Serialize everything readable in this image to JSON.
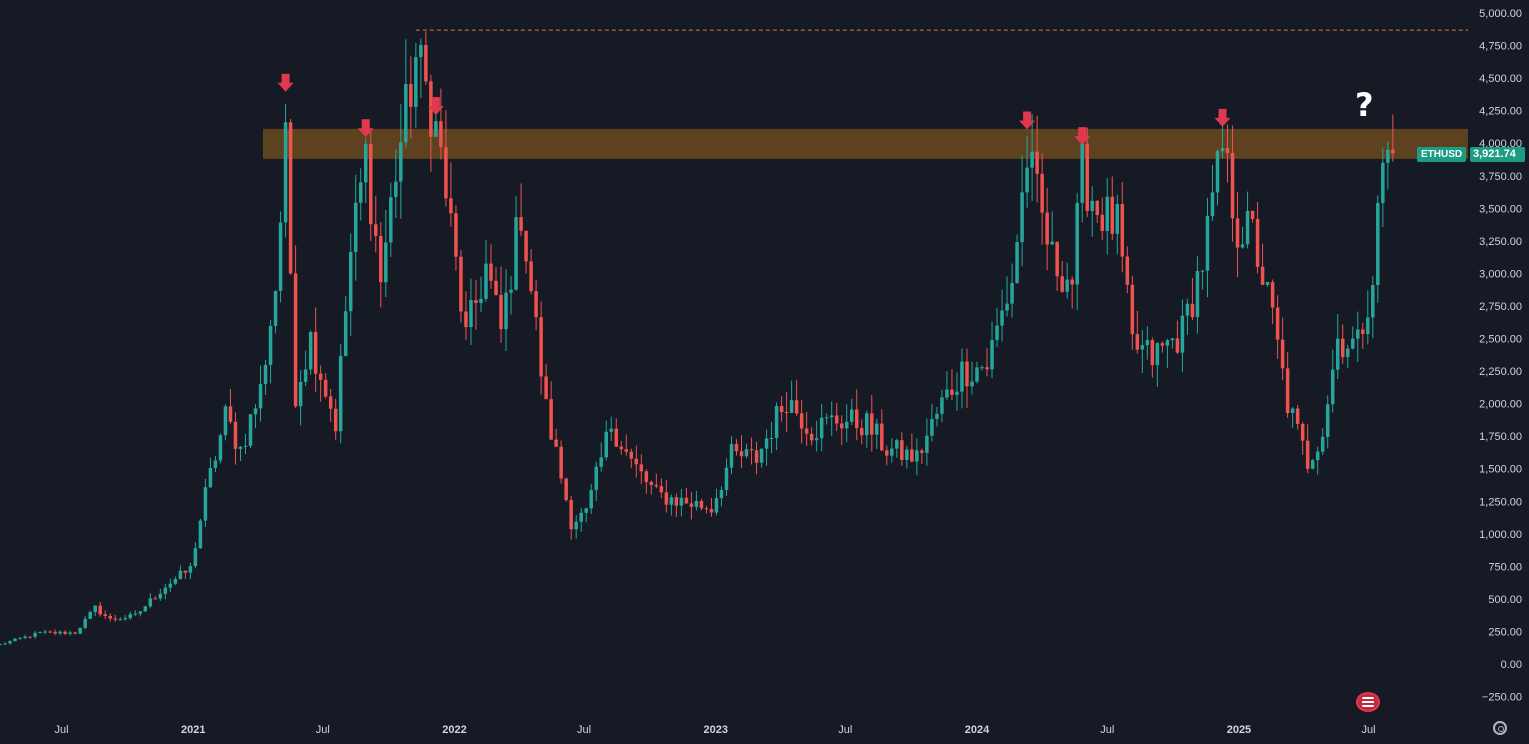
{
  "chart_data": {
    "type": "candlestick",
    "symbol": "ETHUSD",
    "last_price_label": "3,921.74",
    "interval": "weekly",
    "ylim": [
      -330,
      5070
    ],
    "y_ticks": [
      {
        "value": 5000,
        "label": "5,000.00"
      },
      {
        "value": 4750,
        "label": "4,750.00"
      },
      {
        "value": 4500,
        "label": "4,500.00"
      },
      {
        "value": 4250,
        "label": "4,250.00"
      },
      {
        "value": 4000,
        "label": "4,000.00"
      },
      {
        "value": 3750,
        "label": "3,750.00"
      },
      {
        "value": 3500,
        "label": "3,500.00"
      },
      {
        "value": 3250,
        "label": "3,250.00"
      },
      {
        "value": 3000,
        "label": "3,000.00"
      },
      {
        "value": 2750,
        "label": "2,750.00"
      },
      {
        "value": 2500,
        "label": "2,500.00"
      },
      {
        "value": 2250,
        "label": "2,250.00"
      },
      {
        "value": 2000,
        "label": "2,000.00"
      },
      {
        "value": 1750,
        "label": "1,750.00"
      },
      {
        "value": 1500,
        "label": "1,500.00"
      },
      {
        "value": 1250,
        "label": "1,250.00"
      },
      {
        "value": 1000,
        "label": "1,000.00"
      },
      {
        "value": 750,
        "label": "750.00"
      },
      {
        "value": 500,
        "label": "500.00"
      },
      {
        "value": 250,
        "label": "250.00"
      },
      {
        "value": 0,
        "label": "0.00"
      },
      {
        "value": -250,
        "label": "−250.00"
      }
    ],
    "x_ticks": [
      {
        "date": "2020-07-01",
        "label": "Jul",
        "year": false
      },
      {
        "date": "2021-01-01",
        "label": "2021",
        "year": true
      },
      {
        "date": "2021-07-01",
        "label": "Jul",
        "year": false
      },
      {
        "date": "2022-01-01",
        "label": "2022",
        "year": true
      },
      {
        "date": "2022-07-01",
        "label": "Jul",
        "year": false
      },
      {
        "date": "2023-01-01",
        "label": "2023",
        "year": true
      },
      {
        "date": "2023-07-01",
        "label": "Jul",
        "year": false
      },
      {
        "date": "2024-01-01",
        "label": "2024",
        "year": true
      },
      {
        "date": "2024-07-01",
        "label": "Jul",
        "year": false
      },
      {
        "date": "2025-01-01",
        "label": "2025",
        "year": true
      },
      {
        "date": "2025-07-01",
        "label": "Jul",
        "year": false
      }
    ],
    "x_range": [
      "2020-04-06",
      "2025-11-17"
    ],
    "resistance_zone": {
      "low": 3880,
      "high": 4110,
      "color": "#6b4a1f"
    },
    "ath_line": {
      "value": 4868,
      "from": "2021-11-08",
      "color": "#d4813a"
    },
    "rejection_arrows": [
      {
        "date": "2021-05-10",
        "value": 4380
      },
      {
        "date": "2021-08-30",
        "value": 4030
      },
      {
        "date": "2021-12-06",
        "value": 4200
      },
      {
        "date": "2024-03-11",
        "value": 4090
      },
      {
        "date": "2024-05-27",
        "value": 3970
      },
      {
        "date": "2024-12-09",
        "value": 4110
      }
    ],
    "annotation": "?",
    "colors": {
      "up": "#26a69a",
      "down": "#ef5350",
      "background": "#161a25",
      "arrow": "#e0384f"
    },
    "anchors": [
      [
        "2020-04-06",
        150
      ],
      [
        "2020-06-01",
        240
      ],
      [
        "2020-07-20",
        240
      ],
      [
        "2020-08-17",
        430
      ],
      [
        "2020-09-07",
        340
      ],
      [
        "2020-10-12",
        370
      ],
      [
        "2020-11-23",
        600
      ],
      [
        "2020-12-28",
        730
      ],
      [
        "2021-01-18",
        1300
      ],
      [
        "2021-02-15",
        1900
      ],
      [
        "2021-03-08",
        1650
      ],
      [
        "2021-04-05",
        2100
      ],
      [
        "2021-04-26",
        2900
      ],
      [
        "2021-05-10",
        3950
      ],
      [
        "2021-05-24",
        2100
      ],
      [
        "2021-06-14",
        2500
      ],
      [
        "2021-07-19",
        1850
      ],
      [
        "2021-08-09",
        3150
      ],
      [
        "2021-08-30",
        3900
      ],
      [
        "2021-09-20",
        2950
      ],
      [
        "2021-10-11",
        3800
      ],
      [
        "2021-11-08",
        4650
      ],
      [
        "2021-11-29",
        4300
      ],
      [
        "2021-12-13",
        3900
      ],
      [
        "2022-01-17",
        2500
      ],
      [
        "2022-02-14",
        3050
      ],
      [
        "2022-03-07",
        2550
      ],
      [
        "2022-04-04",
        3500
      ],
      [
        "2022-05-09",
        1950
      ],
      [
        "2022-06-13",
        1100
      ],
      [
        "2022-07-04",
        1150
      ],
      [
        "2022-08-08",
        1850
      ],
      [
        "2022-09-05",
        1550
      ],
      [
        "2022-10-10",
        1300
      ],
      [
        "2022-11-14",
        1250
      ],
      [
        "2022-12-26",
        1200
      ],
      [
        "2023-01-23",
        1600
      ],
      [
        "2023-02-27",
        1580
      ],
      [
        "2023-04-10",
        2050
      ],
      [
        "2023-05-15",
        1800
      ],
      [
        "2023-06-19",
        1880
      ],
      [
        "2023-07-31",
        1840
      ],
      [
        "2023-08-28",
        1650
      ],
      [
        "2023-10-09",
        1580
      ],
      [
        "2023-11-13",
        2000
      ],
      [
        "2023-12-11",
        2250
      ],
      [
        "2024-01-15",
        2300
      ],
      [
        "2024-02-19",
        2950
      ],
      [
        "2024-03-11",
        3900
      ],
      [
        "2024-04-15",
        3100
      ],
      [
        "2024-05-13",
        2950
      ],
      [
        "2024-05-27",
        3780
      ],
      [
        "2024-06-17",
        3500
      ],
      [
        "2024-07-15",
        3350
      ],
      [
        "2024-08-05",
        2450
      ],
      [
        "2024-09-02",
        2350
      ],
      [
        "2024-10-14",
        2550
      ],
      [
        "2024-11-11",
        3100
      ],
      [
        "2024-12-09",
        3950
      ],
      [
        "2024-12-30",
        3350
      ],
      [
        "2025-01-20",
        3300
      ],
      [
        "2025-02-17",
        2650
      ],
      [
        "2025-03-10",
        2000
      ],
      [
        "2025-04-07",
        1550
      ],
      [
        "2025-04-28",
        1800
      ],
      [
        "2025-05-19",
        2500
      ],
      [
        "2025-06-16",
        2450
      ],
      [
        "2025-07-07",
        3000
      ],
      [
        "2025-07-21",
        3850
      ],
      [
        "2025-08-04",
        3921.74
      ]
    ]
  }
}
